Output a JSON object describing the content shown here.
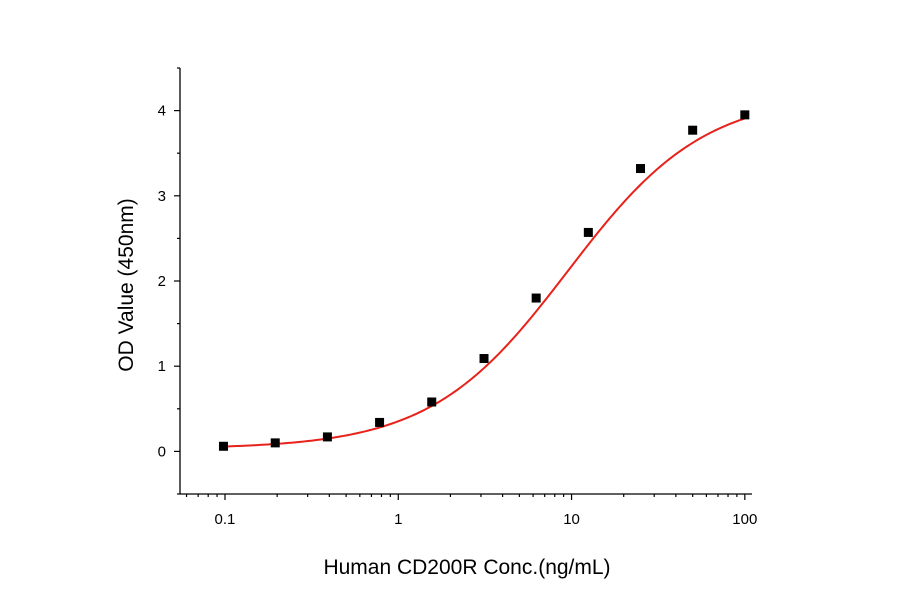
{
  "chart_data": {
    "type": "scatter",
    "title": "",
    "xlabel": "Human CD200R Conc.(ng/mL)",
    "ylabel": "OD Value (450nm)",
    "x_scale": "log",
    "xlim": [
      0.055,
      110
    ],
    "ylim": [
      -0.5,
      4.5
    ],
    "x_ticks": [
      0.1,
      1,
      10,
      100
    ],
    "x_tick_labels": [
      "0.1",
      "1",
      "10",
      "100"
    ],
    "y_ticks": [
      0,
      1,
      2,
      3,
      4
    ],
    "y_tick_labels": [
      "0",
      "1",
      "2",
      "3",
      "4"
    ],
    "grid": false,
    "legend": "none",
    "series": [
      {
        "marker_color": "#000000",
        "x": [
          0.098,
          0.195,
          0.39,
          0.78,
          1.56,
          3.125,
          6.25,
          12.5,
          25,
          50,
          100
        ],
        "y": [
          0.06,
          0.1,
          0.17,
          0.34,
          0.58,
          1.09,
          1.8,
          2.57,
          3.32,
          3.77,
          3.95
        ]
      }
    ],
    "fit_curve": {
      "model": "4PL",
      "color": "#e8211a",
      "bottom": 0.03,
      "top": 4.2,
      "ec50": 9.5,
      "hill": 1.1
    }
  }
}
